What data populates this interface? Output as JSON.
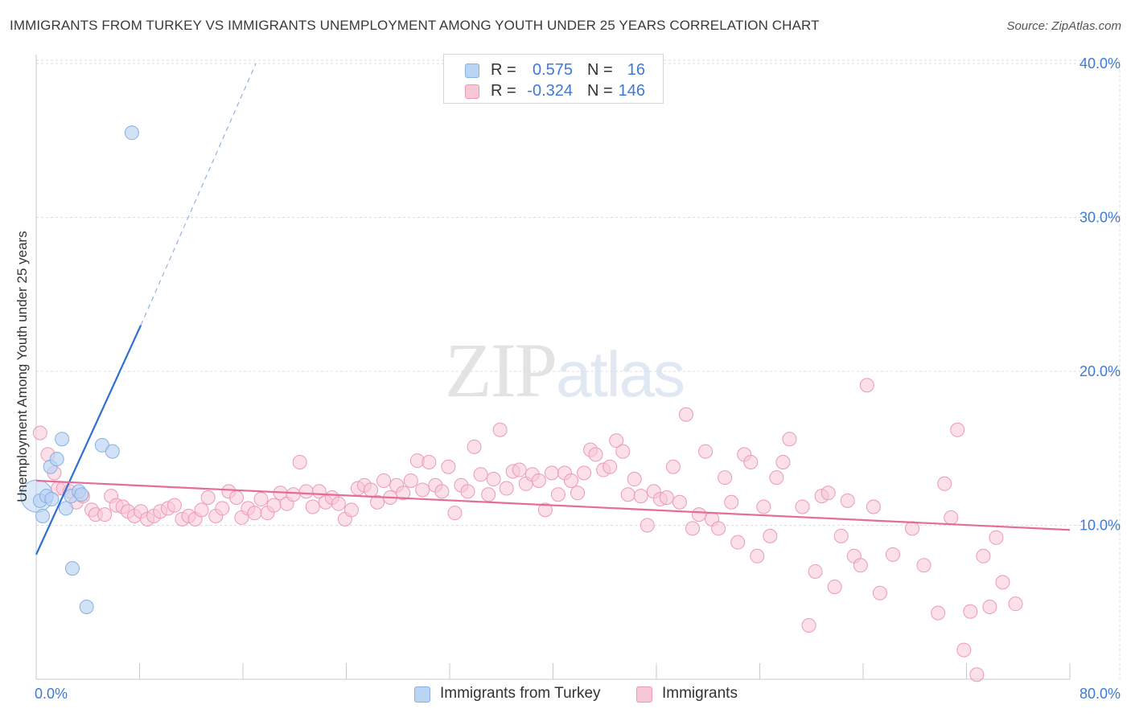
{
  "title": "IMMIGRANTS FROM TURKEY VS IMMIGRANTS UNEMPLOYMENT AMONG YOUTH UNDER 25 YEARS CORRELATION CHART",
  "source": "Source: ZipAtlas.com",
  "watermark": {
    "zip": "ZIP",
    "atlas": "atlas"
  },
  "legend_top": {
    "rows": [
      {
        "r_label": "R =",
        "r_value": "0.575",
        "n_label": "N =",
        "n_value": "16"
      },
      {
        "r_label": "R =",
        "r_value": "-0.324",
        "n_label": "N =",
        "n_value": "146"
      }
    ]
  },
  "legend_bottom": {
    "series_1": "Immigrants from Turkey",
    "series_2": "Immigrants"
  },
  "colors": {
    "blue_fill": "#b9d3f3",
    "blue_stroke": "#86b0e6",
    "blue_line": "#2e6fcf",
    "pink_fill": "#f8c7d6",
    "pink_stroke": "#eb9ab5",
    "pink_line": "#e56c98",
    "tick_text": "#3d7ad8",
    "grid": "#dcdcdc"
  },
  "chart_data": {
    "type": "scatter",
    "title": "IMMIGRANTS FROM TURKEY VS IMMIGRANTS UNEMPLOYMENT AMONG YOUTH UNDER 25 YEARS CORRELATION CHART",
    "xlabel": "",
    "ylabel": "Unemployment Among Youth under 25 years",
    "xlim": [
      0,
      80
    ],
    "ylim": [
      0,
      40
    ],
    "x_tick_labels": [
      "0.0%",
      "80.0%"
    ],
    "y_ticks": [
      10,
      20,
      30,
      40
    ],
    "y_tick_labels": [
      "10.0%",
      "20.0%",
      "30.0%",
      "40.0%"
    ],
    "series": [
      {
        "name": "Immigrants from Turkey",
        "color": "#86b0e6",
        "trend": {
          "x0": 0,
          "y0": 8.1,
          "x1": 8.1,
          "y1": 23.0,
          "dash_to_x": 17.0,
          "dash_to_y": 40.0
        },
        "points": [
          [
            0.3,
            11.6
          ],
          [
            0.5,
            10.6
          ],
          [
            0.8,
            11.9
          ],
          [
            1.2,
            11.7
          ],
          [
            1.1,
            13.8
          ],
          [
            1.6,
            14.3
          ],
          [
            2.0,
            15.6
          ],
          [
            2.3,
            11.1
          ],
          [
            2.7,
            11.9
          ],
          [
            3.3,
            12.2
          ],
          [
            3.5,
            12.0
          ],
          [
            5.1,
            15.2
          ],
          [
            5.9,
            14.8
          ],
          [
            7.4,
            35.5
          ],
          [
            2.8,
            7.2
          ],
          [
            3.9,
            4.7
          ]
        ]
      },
      {
        "name": "Immigrants",
        "color": "#eb9ab5",
        "trend": {
          "x0": 0,
          "y0": 12.9,
          "x1": 80,
          "y1": 9.7
        },
        "points": [
          [
            0.3,
            16.0
          ],
          [
            0.9,
            14.6
          ],
          [
            1.4,
            13.4
          ],
          [
            1.7,
            12.4
          ],
          [
            2.1,
            12.4
          ],
          [
            2.6,
            12.2
          ],
          [
            3.1,
            11.5
          ],
          [
            3.6,
            11.9
          ],
          [
            4.3,
            11.0
          ],
          [
            4.6,
            10.7
          ],
          [
            5.3,
            10.7
          ],
          [
            5.8,
            11.9
          ],
          [
            6.2,
            11.3
          ],
          [
            6.7,
            11.2
          ],
          [
            7.1,
            10.9
          ],
          [
            7.6,
            10.6
          ],
          [
            8.1,
            10.9
          ],
          [
            8.6,
            10.4
          ],
          [
            9.1,
            10.6
          ],
          [
            9.6,
            10.9
          ],
          [
            10.2,
            11.1
          ],
          [
            10.7,
            11.3
          ],
          [
            11.3,
            10.4
          ],
          [
            11.8,
            10.6
          ],
          [
            12.3,
            10.4
          ],
          [
            12.8,
            11.0
          ],
          [
            13.3,
            11.8
          ],
          [
            13.9,
            10.6
          ],
          [
            14.4,
            11.1
          ],
          [
            14.9,
            12.2
          ],
          [
            15.5,
            11.8
          ],
          [
            15.9,
            10.5
          ],
          [
            16.4,
            11.1
          ],
          [
            16.9,
            10.8
          ],
          [
            17.4,
            11.7
          ],
          [
            17.9,
            10.8
          ],
          [
            18.4,
            11.3
          ],
          [
            18.9,
            12.1
          ],
          [
            19.4,
            11.4
          ],
          [
            19.9,
            12.0
          ],
          [
            20.4,
            14.1
          ],
          [
            20.9,
            12.2
          ],
          [
            21.4,
            11.2
          ],
          [
            21.9,
            12.2
          ],
          [
            22.4,
            11.5
          ],
          [
            22.9,
            11.8
          ],
          [
            23.4,
            11.4
          ],
          [
            23.9,
            10.4
          ],
          [
            24.4,
            11.0
          ],
          [
            24.9,
            12.4
          ],
          [
            25.4,
            12.6
          ],
          [
            25.9,
            12.3
          ],
          [
            26.4,
            11.5
          ],
          [
            26.9,
            12.9
          ],
          [
            27.4,
            11.8
          ],
          [
            27.9,
            12.6
          ],
          [
            28.4,
            12.1
          ],
          [
            29.0,
            12.9
          ],
          [
            29.5,
            14.2
          ],
          [
            29.9,
            12.3
          ],
          [
            30.4,
            14.1
          ],
          [
            30.9,
            12.6
          ],
          [
            31.4,
            12.2
          ],
          [
            31.9,
            13.8
          ],
          [
            32.4,
            10.8
          ],
          [
            32.9,
            12.6
          ],
          [
            33.4,
            12.2
          ],
          [
            33.9,
            15.1
          ],
          [
            34.4,
            13.3
          ],
          [
            35.0,
            12.0
          ],
          [
            35.4,
            13.0
          ],
          [
            35.9,
            16.2
          ],
          [
            36.4,
            12.4
          ],
          [
            36.9,
            13.5
          ],
          [
            37.4,
            13.6
          ],
          [
            37.9,
            12.7
          ],
          [
            38.4,
            13.3
          ],
          [
            38.9,
            12.9
          ],
          [
            39.4,
            11.0
          ],
          [
            39.9,
            13.4
          ],
          [
            40.4,
            12.0
          ],
          [
            40.9,
            13.4
          ],
          [
            41.4,
            12.9
          ],
          [
            41.9,
            12.1
          ],
          [
            42.4,
            13.4
          ],
          [
            42.9,
            14.9
          ],
          [
            43.3,
            14.6
          ],
          [
            43.9,
            13.6
          ],
          [
            44.4,
            13.8
          ],
          [
            44.9,
            15.5
          ],
          [
            45.4,
            14.8
          ],
          [
            45.8,
            12.0
          ],
          [
            46.3,
            13.0
          ],
          [
            46.8,
            11.9
          ],
          [
            47.3,
            10.0
          ],
          [
            47.8,
            12.2
          ],
          [
            48.3,
            11.7
          ],
          [
            48.8,
            11.8
          ],
          [
            49.3,
            13.8
          ],
          [
            49.8,
            11.5
          ],
          [
            50.3,
            17.2
          ],
          [
            50.8,
            9.8
          ],
          [
            51.3,
            10.7
          ],
          [
            51.8,
            14.8
          ],
          [
            52.3,
            10.4
          ],
          [
            52.8,
            9.8
          ],
          [
            53.3,
            13.1
          ],
          [
            53.8,
            11.5
          ],
          [
            54.3,
            8.9
          ],
          [
            54.8,
            14.6
          ],
          [
            55.3,
            14.1
          ],
          [
            55.8,
            8.0
          ],
          [
            56.3,
            11.2
          ],
          [
            56.8,
            9.3
          ],
          [
            57.3,
            13.1
          ],
          [
            57.8,
            14.1
          ],
          [
            58.3,
            15.6
          ],
          [
            59.3,
            11.2
          ],
          [
            59.8,
            3.5
          ],
          [
            60.3,
            7.0
          ],
          [
            60.8,
            11.9
          ],
          [
            61.3,
            12.1
          ],
          [
            61.8,
            6.0
          ],
          [
            62.3,
            9.3
          ],
          [
            62.8,
            11.6
          ],
          [
            63.3,
            8.0
          ],
          [
            63.8,
            7.4
          ],
          [
            64.3,
            19.1
          ],
          [
            64.8,
            11.2
          ],
          [
            65.3,
            5.6
          ],
          [
            66.3,
            8.1
          ],
          [
            67.8,
            9.8
          ],
          [
            68.7,
            7.4
          ],
          [
            69.8,
            4.3
          ],
          [
            70.3,
            12.7
          ],
          [
            70.8,
            10.5
          ],
          [
            71.3,
            16.2
          ],
          [
            71.8,
            1.9
          ],
          [
            72.3,
            4.4
          ],
          [
            72.8,
            0.3
          ],
          [
            73.3,
            8.0
          ],
          [
            73.8,
            4.7
          ],
          [
            74.3,
            9.2
          ],
          [
            74.8,
            6.3
          ],
          [
            75.8,
            4.9
          ]
        ]
      }
    ]
  }
}
